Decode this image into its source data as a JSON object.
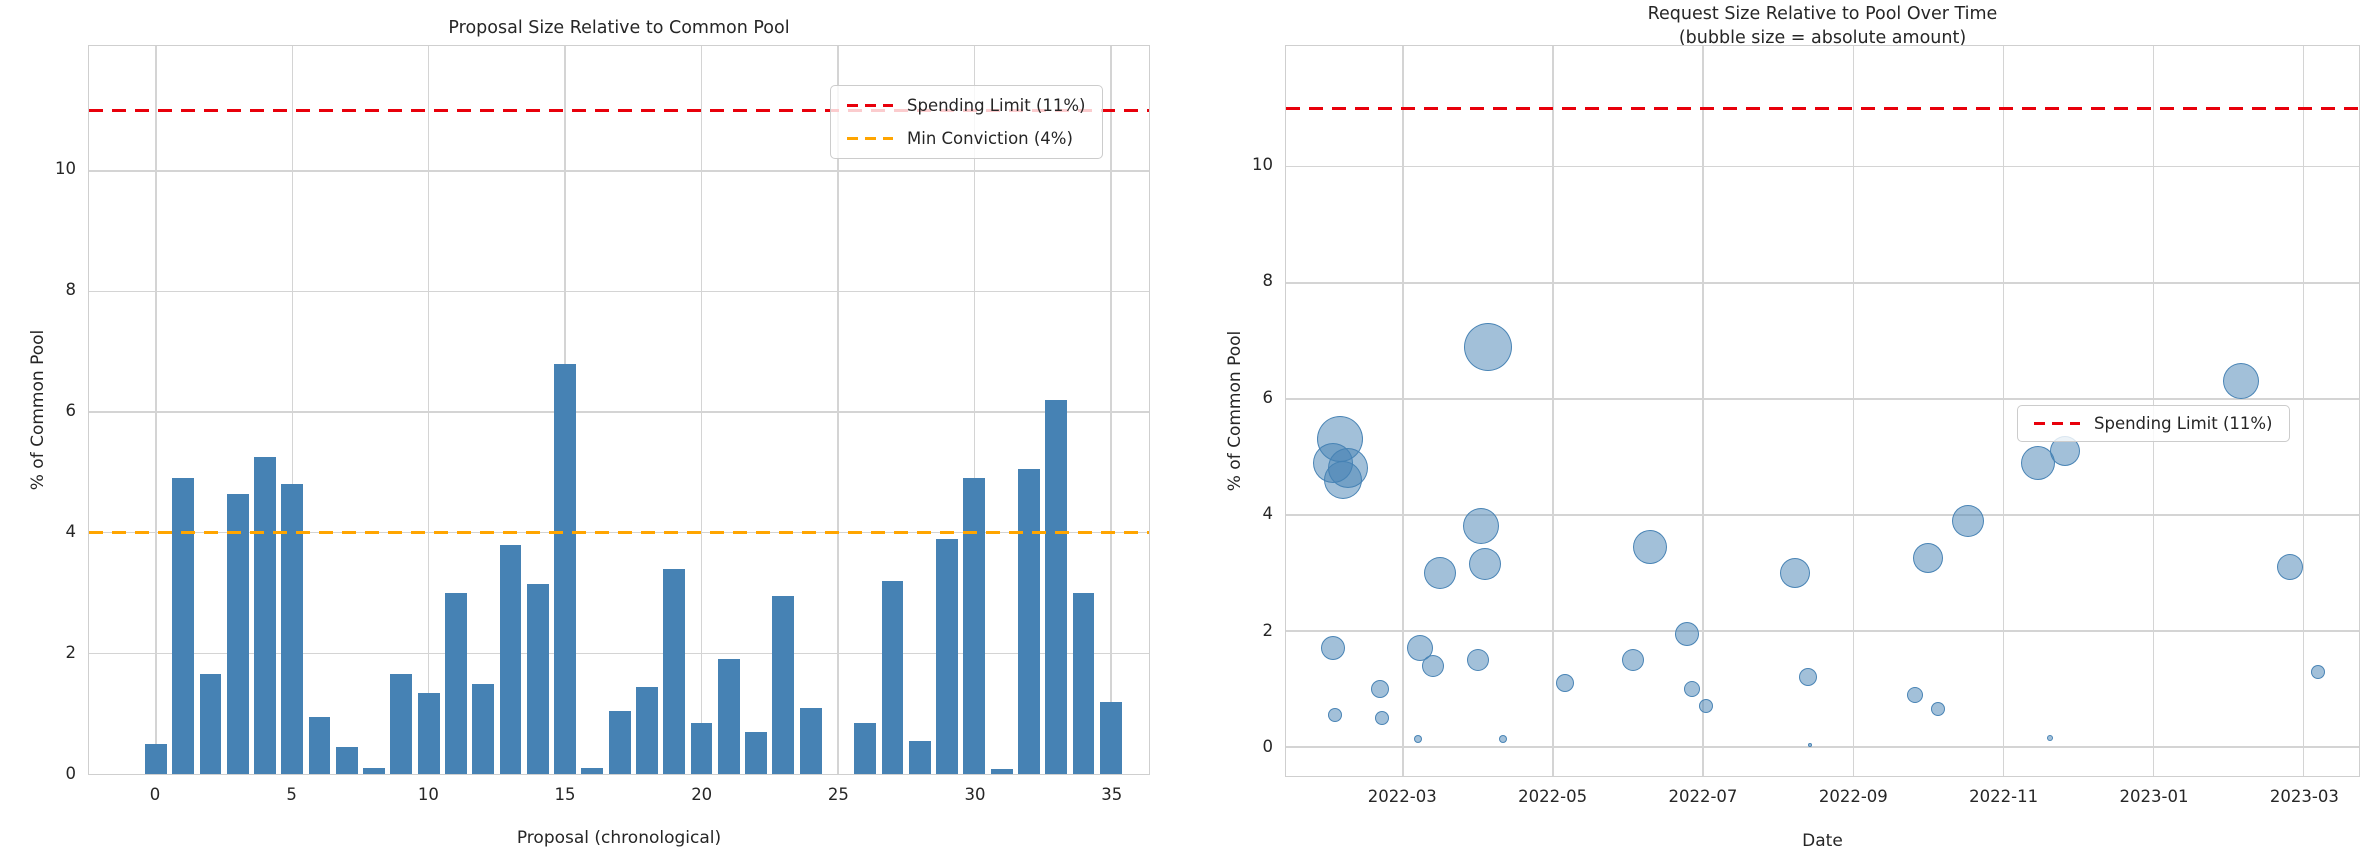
{
  "figure_background": "#ffffff",
  "palette": {
    "bar_color": "#4682b4",
    "bubble_fill": "rgba(70,130,180,0.5)",
    "bubble_edge": "rgba(70,130,180,0.95)",
    "spending_limit_color": "#e8000b",
    "min_conviction_color": "#ffa500",
    "grid_color": "#d4d4d4",
    "text_color": "#262626"
  },
  "chart_data": [
    {
      "type": "bar",
      "title": "Proposal Size Relative to Common Pool",
      "xlabel": "Proposal (chronological)",
      "ylabel": "% of Common Pool",
      "categories": [
        0,
        1,
        2,
        3,
        4,
        5,
        6,
        7,
        8,
        9,
        10,
        11,
        12,
        13,
        14,
        15,
        16,
        17,
        18,
        19,
        20,
        21,
        22,
        23,
        24,
        25,
        26,
        27,
        28,
        29,
        30,
        31,
        32,
        33,
        34,
        35
      ],
      "values": [
        0.5,
        4.9,
        1.65,
        4.65,
        5.25,
        4.8,
        0.95,
        0.45,
        0.1,
        1.65,
        1.35,
        3.0,
        1.5,
        3.8,
        3.15,
        6.8,
        0.1,
        1.05,
        1.45,
        3.4,
        0.85,
        1.9,
        0.7,
        2.95,
        1.1,
        0,
        0.85,
        3.2,
        0.55,
        3.9,
        4.9,
        0.08,
        5.05,
        6.2,
        3.0,
        1.2
      ],
      "xticks": [
        0,
        5,
        10,
        15,
        20,
        25,
        30,
        35
      ],
      "yticks": [
        0,
        2,
        4,
        6,
        8,
        10
      ],
      "xlim": [
        -2.45,
        36.4
      ],
      "ylim": [
        0,
        12.07
      ],
      "grid": true,
      "bar_color": "#4682b4",
      "bar_width": 0.8,
      "hlines": [
        {
          "label": "Spending Limit (11%)",
          "value": 11,
          "color": "#e8000b",
          "style": "dashed"
        },
        {
          "label": "Min Conviction (4%)",
          "value": 4,
          "color": "#ffa500",
          "style": "dashed"
        }
      ],
      "legend_position": "upper right"
    },
    {
      "type": "scatter",
      "title": "Request Size Relative to Pool Over Time",
      "subtitle": "(bubble size = absolute amount)",
      "xlabel": "Date",
      "ylabel": "% of Common Pool",
      "xticks": [
        "2022-03",
        "2022-05",
        "2022-07",
        "2022-09",
        "2022-11",
        "2023-01",
        "2023-03"
      ],
      "xtick_months": [
        2,
        4,
        6,
        8,
        10,
        12,
        14
      ],
      "yticks": [
        0,
        2,
        4,
        6,
        8,
        10
      ],
      "xlim_months": [
        0.44,
        14.74
      ],
      "ylim": [
        -0.5,
        12.08
      ],
      "grid": true,
      "points": [
        {
          "date": "2022-02-03",
          "pct": 4.9,
          "r": 20
        },
        {
          "date": "2022-02-06",
          "pct": 5.3,
          "r": 23
        },
        {
          "date": "2022-02-09",
          "pct": 4.8,
          "r": 20
        },
        {
          "date": "2022-02-07",
          "pct": 4.6,
          "r": 19
        },
        {
          "date": "2022-02-03",
          "pct": 1.7,
          "r": 12
        },
        {
          "date": "2022-02-04",
          "pct": 0.55,
          "r": 7
        },
        {
          "date": "2022-02-22",
          "pct": 1.0,
          "r": 9
        },
        {
          "date": "2022-02-23",
          "pct": 0.5,
          "r": 7
        },
        {
          "date": "2022-03-07",
          "pct": 0.13,
          "r": 4
        },
        {
          "date": "2022-03-08",
          "pct": 1.7,
          "r": 13
        },
        {
          "date": "2022-03-13",
          "pct": 1.4,
          "r": 11
        },
        {
          "date": "2022-03-16",
          "pct": 3.0,
          "r": 16
        },
        {
          "date": "2022-04-01",
          "pct": 1.5,
          "r": 11
        },
        {
          "date": "2022-04-02",
          "pct": 3.8,
          "r": 18
        },
        {
          "date": "2022-04-05",
          "pct": 6.9,
          "r": 24
        },
        {
          "date": "2022-04-04",
          "pct": 3.15,
          "r": 16
        },
        {
          "date": "2022-04-11",
          "pct": 0.13,
          "r": 4
        },
        {
          "date": "2022-05-06",
          "pct": 1.1,
          "r": 9
        },
        {
          "date": "2022-06-03",
          "pct": 1.5,
          "r": 11
        },
        {
          "date": "2022-06-10",
          "pct": 3.45,
          "r": 17
        },
        {
          "date": "2022-06-25",
          "pct": 1.95,
          "r": 12
        },
        {
          "date": "2022-06-27",
          "pct": 1.0,
          "r": 8
        },
        {
          "date": "2022-07-02",
          "pct": 0.7,
          "r": 7
        },
        {
          "date": "2022-08-08",
          "pct": 3.0,
          "r": 15
        },
        {
          "date": "2022-08-13",
          "pct": 1.2,
          "r": 9
        },
        {
          "date": "2022-08-14",
          "pct": 0.03,
          "r": 2
        },
        {
          "date": "2022-09-26",
          "pct": 0.9,
          "r": 8
        },
        {
          "date": "2022-10-01",
          "pct": 3.25,
          "r": 15
        },
        {
          "date": "2022-10-05",
          "pct": 0.65,
          "r": 7
        },
        {
          "date": "2022-10-17",
          "pct": 3.9,
          "r": 16
        },
        {
          "date": "2022-11-15",
          "pct": 4.9,
          "r": 17
        },
        {
          "date": "2022-11-20",
          "pct": 0.15,
          "r": 3
        },
        {
          "date": "2022-11-26",
          "pct": 5.1,
          "r": 15
        },
        {
          "date": "2023-02-06",
          "pct": 6.3,
          "r": 18
        },
        {
          "date": "2023-02-26",
          "pct": 3.1,
          "r": 13
        },
        {
          "date": "2023-03-07",
          "pct": 1.3,
          "r": 7
        }
      ],
      "hlines": [
        {
          "label": "Spending Limit (11%)",
          "value": 11,
          "color": "#e8000b",
          "style": "dashed"
        }
      ],
      "legend_position": "center right"
    }
  ]
}
